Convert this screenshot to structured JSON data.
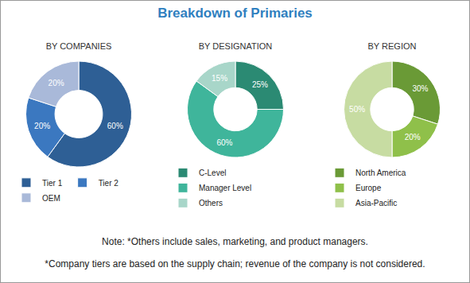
{
  "title": "Breakdown of Primaries",
  "chart_data": [
    {
      "type": "pie",
      "title": "BY COMPANIES",
      "categories": [
        "Tier 1",
        "Tier 2",
        "OEM"
      ],
      "values": [
        60,
        20,
        20
      ],
      "value_labels": [
        "60%",
        "20%",
        "20%"
      ],
      "colors": [
        "#2e5f95",
        "#3b78c0",
        "#a9b9d9"
      ],
      "data_labels": true,
      "legend": "bottom"
    },
    {
      "type": "pie",
      "title": "BY DESIGNATION",
      "categories": [
        "C-Level",
        "Manager Level",
        "Others"
      ],
      "values": [
        25,
        60,
        15
      ],
      "value_labels": [
        "25%",
        "60%",
        "15%"
      ],
      "colors": [
        "#2b8a73",
        "#3fb59b",
        "#a8d6c9"
      ],
      "data_labels": true,
      "legend": "bottom"
    },
    {
      "type": "pie",
      "title": "BY REGION",
      "categories": [
        "North America",
        "Europe",
        "Asia-Pacific"
      ],
      "values": [
        30,
        20,
        50
      ],
      "value_labels": [
        "30%",
        "20%",
        "50%"
      ],
      "colors": [
        "#6a9a36",
        "#8fc04a",
        "#c7dca2"
      ],
      "data_labels": true,
      "legend": "bottom"
    }
  ],
  "notes": [
    "Note: *Others include sales, marketing, and product managers.",
    "*Company tiers are based on the supply chain; revenue of the company is not considered."
  ]
}
